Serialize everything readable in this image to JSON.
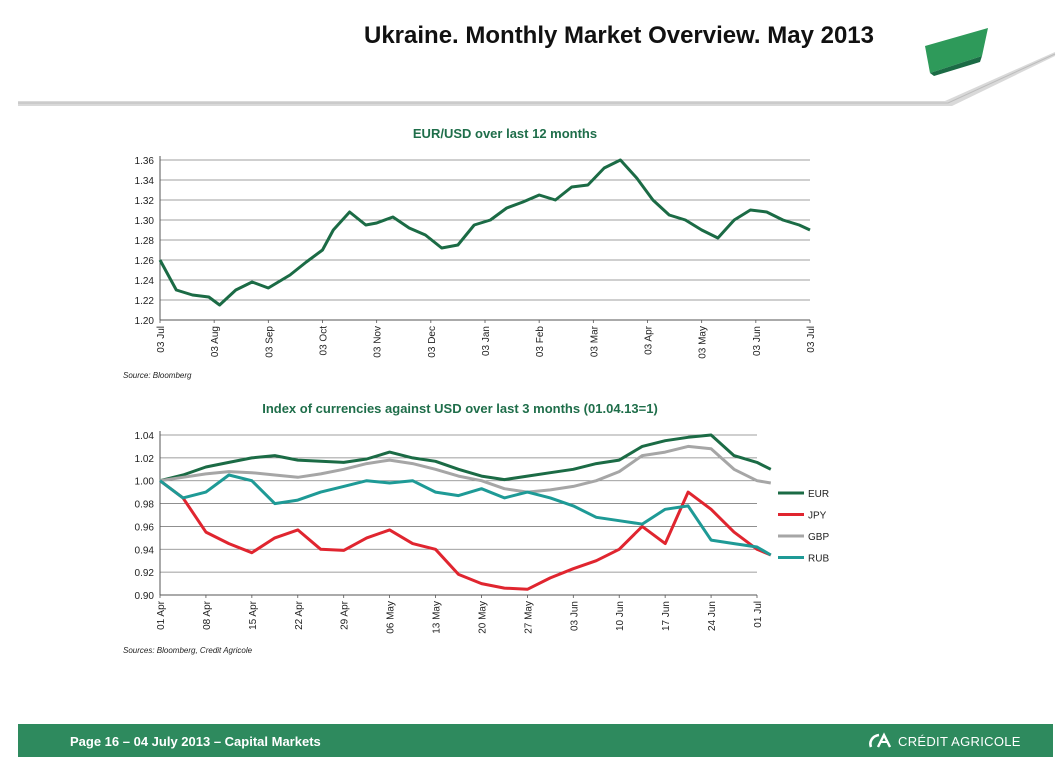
{
  "header": {
    "title": "Ukraine. Monthly Market Overview. May 2013"
  },
  "footer": {
    "text": "Page 16 – 04 July 2013 – Capital Markets",
    "logo_text": "CRÉDIT AGRICOLE"
  },
  "colors": {
    "eur": "#1b6b45",
    "jpy": "#e0252f",
    "gbp": "#a6a6a6",
    "rub": "#1e9a96",
    "title_green": "#1f6e4a",
    "footer_green": "#2e8a5e"
  },
  "charts": {
    "top": {
      "title": "EUR/USD over last 12 months",
      "source": "Source: Bloomberg"
    },
    "bottom": {
      "title": "Index of currencies against USD over last 3 months (01.04.13=1)",
      "source": "Sources: Bloomberg, Credit Agricole"
    }
  },
  "chart_data": [
    {
      "type": "line",
      "title": "EUR/USD over last 12 months",
      "x_ticks": [
        "03 Jul",
        "03 Aug",
        "03 Sep",
        "03 Oct",
        "03 Nov",
        "03 Dec",
        "03 Jan",
        "03 Feb",
        "03 Mar",
        "03 Apr",
        "03 May",
        "03 Jun",
        "03 Jul"
      ],
      "y_ticks": [
        "1.20",
        "1.22",
        "1.24",
        "1.26",
        "1.28",
        "1.30",
        "1.32",
        "1.34",
        "1.36"
      ],
      "ylim": [
        1.2,
        1.36
      ],
      "grid": true,
      "series": [
        {
          "color_key": "eur",
          "x": [
            0,
            0.3,
            0.6,
            0.9,
            1.1,
            1.4,
            1.7,
            2.0,
            2.4,
            2.7,
            3.0,
            3.2,
            3.5,
            3.8,
            4.0,
            4.3,
            4.6,
            4.9,
            5.2,
            5.5,
            5.8,
            6.1,
            6.4,
            6.7,
            7.0,
            7.3,
            7.6,
            7.9,
            8.2,
            8.5,
            8.8,
            9.1,
            9.4,
            9.7,
            10.0,
            10.3,
            10.6,
            10.9,
            11.2,
            11.5,
            11.8,
            12.0
          ],
          "y": [
            1.26,
            1.23,
            1.225,
            1.223,
            1.215,
            1.23,
            1.238,
            1.232,
            1.245,
            1.258,
            1.27,
            1.29,
            1.308,
            1.295,
            1.297,
            1.303,
            1.292,
            1.285,
            1.272,
            1.275,
            1.295,
            1.3,
            1.312,
            1.318,
            1.325,
            1.32,
            1.333,
            1.335,
            1.352,
            1.36,
            1.342,
            1.32,
            1.305,
            1.3,
            1.29,
            1.282,
            1.3,
            1.31,
            1.308,
            1.3,
            1.295,
            1.29
          ]
        }
      ]
    },
    {
      "type": "line",
      "title": "Index of currencies against USD over last 3 months (01.04.13=1)",
      "x_ticks": [
        "01 Apr",
        "08 Apr",
        "15 Apr",
        "22 Apr",
        "29 Apr",
        "06 May",
        "13 May",
        "20 May",
        "27 May",
        "03 Jun",
        "10 Jun",
        "17 Jun",
        "24 Jun",
        "01 Jul"
      ],
      "y_ticks": [
        "0.90",
        "0.92",
        "0.94",
        "0.96",
        "0.98",
        "1.00",
        "1.02",
        "1.04"
      ],
      "ylim": [
        0.9,
        1.04
      ],
      "grid": true,
      "legend_position": "right",
      "series": [
        {
          "name": "EUR",
          "color_key": "eur",
          "x": [
            0,
            0.5,
            1,
            1.5,
            2,
            2.5,
            3,
            3.5,
            4,
            4.5,
            5,
            5.5,
            6,
            6.5,
            7,
            7.5,
            8,
            8.5,
            9,
            9.5,
            10,
            10.5,
            11,
            11.5,
            12,
            12.5,
            13,
            13.3
          ],
          "y": [
            1.0,
            1.005,
            1.012,
            1.016,
            1.02,
            1.022,
            1.018,
            1.017,
            1.016,
            1.019,
            1.025,
            1.02,
            1.017,
            1.01,
            1.004,
            1.001,
            1.004,
            1.007,
            1.01,
            1.015,
            1.018,
            1.03,
            1.035,
            1.038,
            1.04,
            1.022,
            1.016,
            1.01
          ]
        },
        {
          "name": "JPY",
          "color_key": "jpy",
          "x": [
            0,
            0.5,
            1,
            1.5,
            2,
            2.5,
            3,
            3.5,
            4,
            4.5,
            5,
            5.5,
            6,
            6.5,
            7,
            7.5,
            8,
            8.5,
            9,
            9.5,
            10,
            10.5,
            11,
            11.5,
            12,
            12.5,
            13,
            13.3
          ],
          "y": [
            1.0,
            0.985,
            0.955,
            0.945,
            0.937,
            0.95,
            0.957,
            0.94,
            0.939,
            0.95,
            0.957,
            0.945,
            0.94,
            0.918,
            0.91,
            0.906,
            0.905,
            0.915,
            0.923,
            0.93,
            0.94,
            0.96,
            0.945,
            0.99,
            0.975,
            0.955,
            0.94,
            0.935
          ]
        },
        {
          "name": "GBP",
          "color_key": "gbp",
          "x": [
            0,
            0.5,
            1,
            1.5,
            2,
            2.5,
            3,
            3.5,
            4,
            4.5,
            5,
            5.5,
            6,
            6.5,
            7,
            7.5,
            8,
            8.5,
            9,
            9.5,
            10,
            10.5,
            11,
            11.5,
            12,
            12.5,
            13,
            13.3
          ],
          "y": [
            1.0,
            1.003,
            1.006,
            1.008,
            1.007,
            1.005,
            1.003,
            1.006,
            1.01,
            1.015,
            1.018,
            1.015,
            1.01,
            1.004,
            1.0,
            0.993,
            0.99,
            0.992,
            0.995,
            1.0,
            1.008,
            1.022,
            1.025,
            1.03,
            1.028,
            1.01,
            1.0,
            0.998
          ]
        },
        {
          "name": "RUB",
          "color_key": "rub",
          "x": [
            0,
            0.5,
            1,
            1.5,
            2,
            2.5,
            3,
            3.5,
            4,
            4.5,
            5,
            5.5,
            6,
            6.5,
            7,
            7.5,
            8,
            8.5,
            9,
            9.5,
            10,
            10.5,
            11,
            11.5,
            12,
            12.5,
            13,
            13.3
          ],
          "y": [
            1.0,
            0.985,
            0.99,
            1.005,
            1.0,
            0.98,
            0.983,
            0.99,
            0.995,
            1.0,
            0.998,
            1.0,
            0.99,
            0.987,
            0.993,
            0.985,
            0.99,
            0.985,
            0.978,
            0.968,
            0.965,
            0.962,
            0.975,
            0.978,
            0.948,
            0.945,
            0.942,
            0.935
          ]
        }
      ]
    }
  ]
}
